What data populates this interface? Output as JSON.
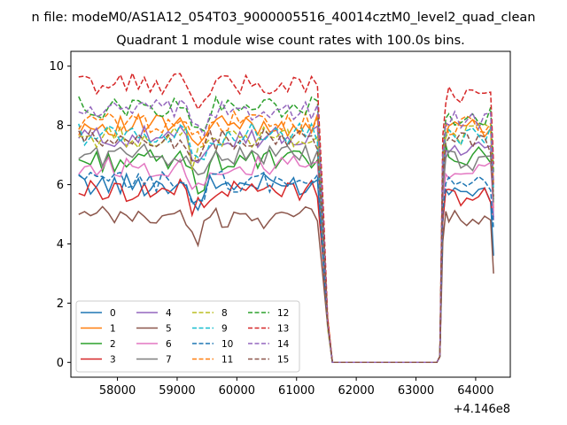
{
  "chart_data": {
    "type": "line",
    "suptitle": "n file: modeM0/AS1A12_054T03_9000005516_40014cztM0_level2_quad_clean",
    "title": "Quadrant 1 module wise count rates with 100.0s bins.",
    "xlabel": "",
    "ylabel": "",
    "x_offset_label": "+4.146e8",
    "xlim": [
      57220,
      64580
    ],
    "ylim": [
      -0.5,
      10.5
    ],
    "xticks": [
      57000,
      58000,
      59000,
      60000,
      61000,
      62000,
      63000,
      64000
    ],
    "xtick_labels": [
      "57000",
      "58000",
      "59000",
      "60000",
      "61000",
      "62000",
      "63000",
      "64000"
    ],
    "yticks": [
      0,
      2,
      4,
      6,
      8,
      10
    ],
    "ytick_labels": [
      "0",
      "2",
      "4",
      "6",
      "8",
      "10"
    ],
    "grid": false,
    "legend_location": "lower-left",
    "legend_columns": 4,
    "segments": [
      {
        "start": 57350,
        "end": 61350
      },
      {
        "end_drop_points": [
          61400,
          61500,
          61600
        ]
      },
      {
        "zero_start": 61600,
        "zero_end": 63350
      },
      {
        "start": 63450,
        "end": 64300
      }
    ],
    "x_first_block": [
      57350,
      57450,
      57550,
      57650,
      57750,
      57850,
      57950,
      58050,
      58150,
      58250,
      58350,
      58450,
      58550,
      58650,
      58750,
      58850,
      58950,
      59050,
      59150,
      59250,
      59350,
      59450,
      59550,
      59650,
      59750,
      59850,
      59950,
      60050,
      60150,
      60250,
      60350,
      60450,
      60550,
      60650,
      60750,
      60850,
      60950,
      61050,
      61150,
      61250,
      61350
    ],
    "x_drop": [
      61450,
      61520,
      61600
    ],
    "x_zero_end": 63350,
    "x_rise": [
      63400,
      63450
    ],
    "x_second_block": [
      63500,
      63550,
      63650,
      63750,
      63850,
      63950,
      64050,
      64150,
      64250,
      64300
    ],
    "series": [
      {
        "name": "0",
        "color": "#1f77b4",
        "dash": "solid",
        "level1": 6.0,
        "level2": 5.6,
        "end": 3.6
      },
      {
        "name": "1",
        "color": "#ff7f0e",
        "dash": "solid",
        "level1": 8.0,
        "level2": 7.9,
        "end": 5.2
      },
      {
        "name": "2",
        "color": "#2ca02c",
        "dash": "solid",
        "level1": 6.8,
        "level2": 7.0,
        "end": 5.5
      },
      {
        "name": "3",
        "color": "#d62728",
        "dash": "solid",
        "level1": 5.8,
        "level2": 5.6,
        "end": 4.9
      },
      {
        "name": "4",
        "color": "#9467bd",
        "dash": "solid",
        "level1": 7.6,
        "level2": 7.2,
        "end": 4.8
      },
      {
        "name": "5",
        "color": "#8c564b",
        "dash": "solid",
        "level1": 4.9,
        "level2": 4.8,
        "end": 3.0
      },
      {
        "name": "6",
        "color": "#e377c2",
        "dash": "solid",
        "level1": 6.6,
        "level2": 6.4,
        "end": 5.1
      },
      {
        "name": "7",
        "color": "#7f7f7f",
        "dash": "solid",
        "level1": 7.0,
        "level2": 6.8,
        "end": 5.4
      },
      {
        "name": "8",
        "color": "#bcbd22",
        "dash": "dashed",
        "level1": 7.6,
        "level2": 7.7,
        "end": 6.1
      },
      {
        "name": "9",
        "color": "#17becf",
        "dash": "dashed",
        "level1": 7.7,
        "level2": 7.6,
        "end": 5.8
      },
      {
        "name": "10",
        "color": "#1f77b4",
        "dash": "dashed",
        "level1": 6.1,
        "level2": 6.0,
        "end": 4.5
      },
      {
        "name": "11",
        "color": "#ff7f0e",
        "dash": "dashed",
        "level1": 8.1,
        "level2": 8.0,
        "end": 6.0
      },
      {
        "name": "12",
        "color": "#2ca02c",
        "dash": "dashed",
        "level1": 8.6,
        "level2": 8.3,
        "end": 6.4
      },
      {
        "name": "13",
        "color": "#d62728",
        "dash": "dashed",
        "level1": 9.4,
        "level2": 9.0,
        "end": 6.7
      },
      {
        "name": "14",
        "color": "#9467bd",
        "dash": "dashed",
        "level1": 8.5,
        "level2": 8.2,
        "end": 6.0
      },
      {
        "name": "15",
        "color": "#8c564b",
        "dash": "dashed",
        "level1": 7.5,
        "level2": 7.4,
        "end": 5.6
      }
    ]
  }
}
